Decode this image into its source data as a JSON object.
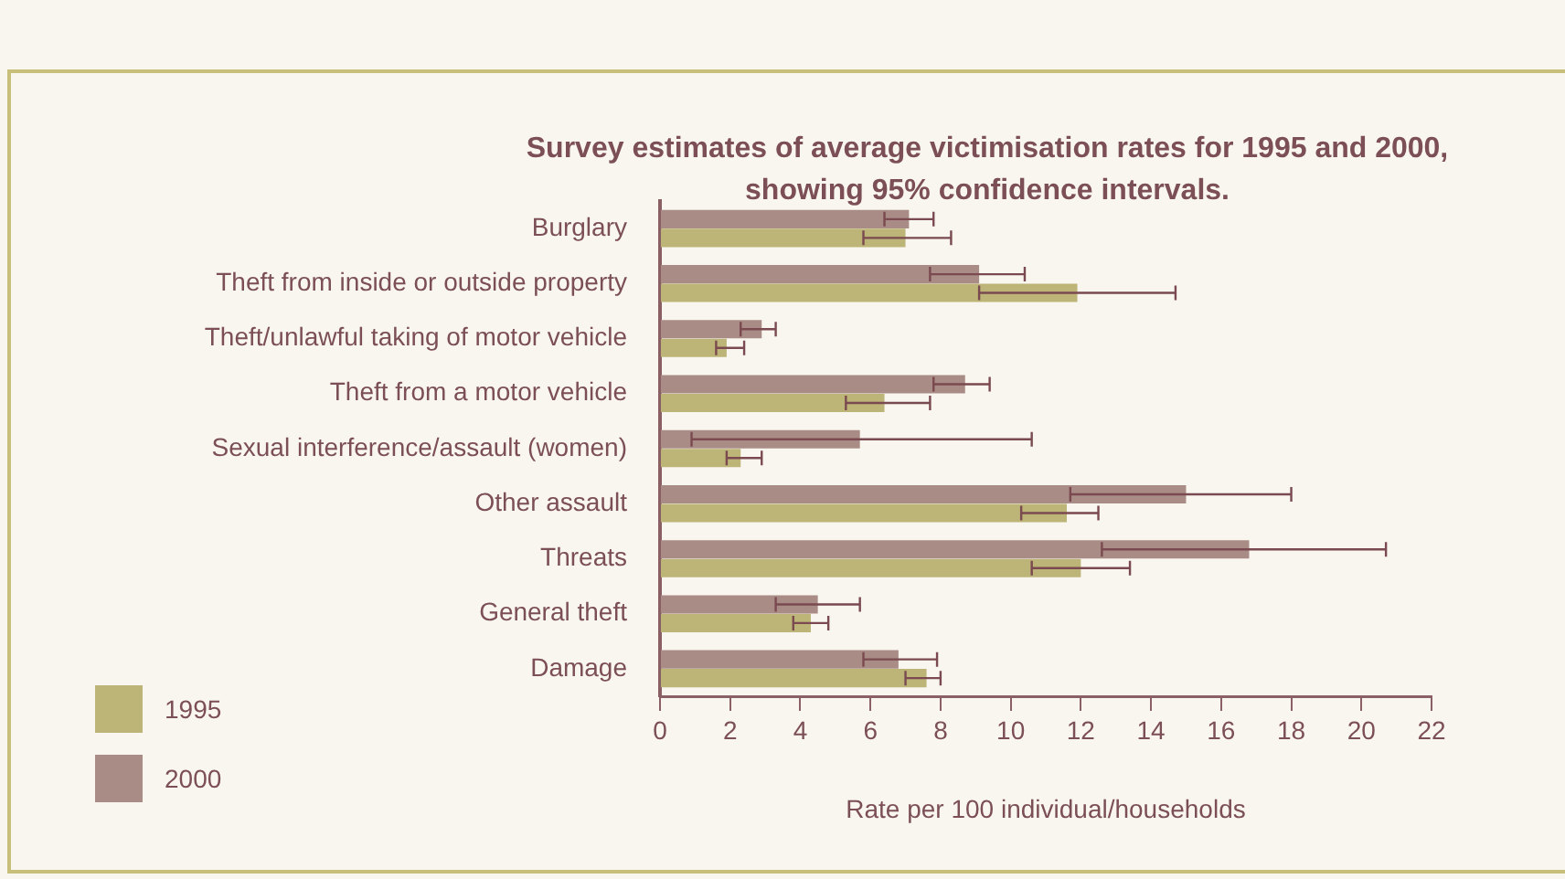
{
  "chart_data": {
    "type": "bar",
    "orientation": "horizontal",
    "title": "Survey estimates of average victimisation rates for 1995 and 2000, showing 95% confidence intervals.",
    "xlabel": "Rate per 100 individual/households",
    "categories": [
      "Burglary",
      "Theft from inside or outside property",
      "Theft/unlawful taking of motor vehicle",
      "Theft from a motor vehicle",
      "Sexual interference/assault (women)",
      "Other assault",
      "Threats",
      "General theft",
      "Damage"
    ],
    "series": [
      {
        "name": "1995",
        "color": "#bdb477",
        "values": [
          7.0,
          11.9,
          1.9,
          6.4,
          2.3,
          11.6,
          12.0,
          4.3,
          7.6
        ],
        "errors": [
          [
            5.8,
            8.3
          ],
          [
            9.1,
            14.7
          ],
          [
            1.6,
            2.4
          ],
          [
            5.3,
            7.7
          ],
          [
            1.9,
            2.9
          ],
          [
            10.3,
            12.5
          ],
          [
            10.6,
            13.4
          ],
          [
            3.8,
            4.8
          ],
          [
            7.0,
            8.0
          ]
        ]
      },
      {
        "name": "2000",
        "color": "#aa8c86",
        "values": [
          7.1,
          9.1,
          2.9,
          8.7,
          5.7,
          15.0,
          16.8,
          4.5,
          6.8
        ],
        "errors": [
          [
            6.4,
            7.8
          ],
          [
            7.7,
            10.4
          ],
          [
            2.3,
            3.3
          ],
          [
            7.8,
            9.4
          ],
          [
            0.9,
            10.6
          ],
          [
            11.7,
            18.0
          ],
          [
            12.6,
            20.7
          ],
          [
            3.3,
            5.7
          ],
          [
            5.8,
            7.9
          ]
        ]
      }
    ],
    "xlim": [
      0,
      22
    ],
    "xticks": [
      0,
      2,
      4,
      6,
      8,
      10,
      12,
      14,
      16,
      18,
      20,
      22
    ],
    "grid": false,
    "legend": "bottom left"
  }
}
